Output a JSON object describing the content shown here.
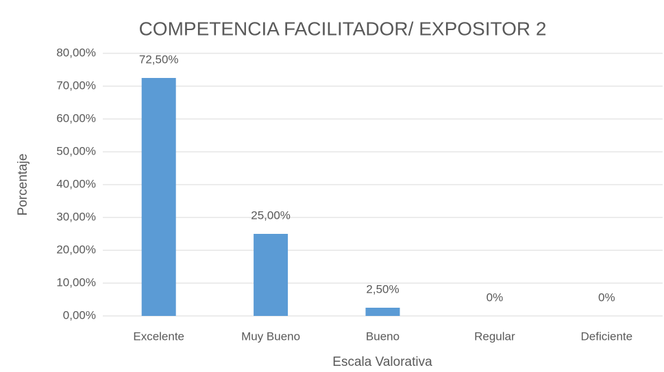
{
  "chart_data": {
    "type": "bar",
    "title": "COMPETENCIA FACILITADOR/ EXPOSITOR 2",
    "x_label": "Escala Valorativa",
    "y_label": "Porcentaje",
    "categories": [
      "Excelente",
      "Muy Bueno",
      "Bueno",
      "Regular",
      "Deficiente"
    ],
    "values": [
      72.5,
      25,
      2.5,
      0,
      0
    ],
    "value_labels": [
      "72,50%",
      "25,00%",
      "2,50%",
      "0%",
      "0%"
    ],
    "color": "#5b9bd5",
    "ylim": [
      0,
      80
    ],
    "yticks": [
      {
        "value": 0,
        "label": "0,00%"
      },
      {
        "value": 10,
        "label": "10,00%"
      },
      {
        "value": 20,
        "label": "20,00%"
      },
      {
        "value": 30,
        "label": "30,00%"
      },
      {
        "value": 40,
        "label": "40,00%"
      },
      {
        "value": 50,
        "label": "50,00%"
      },
      {
        "value": 60,
        "label": "60,00%"
      },
      {
        "value": 70,
        "label": "70,00%"
      },
      {
        "value": 80,
        "label": "80,00%"
      }
    ],
    "grid": true
  }
}
